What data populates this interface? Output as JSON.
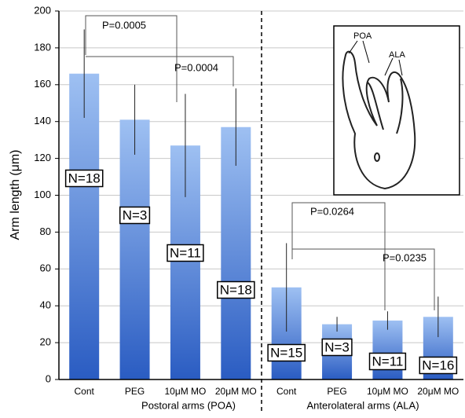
{
  "chart_data": {
    "type": "bar",
    "y_label": "Arm length (μm)",
    "categories": [
      "Cont",
      "PEG",
      "10μM MO",
      "20μM MO",
      "Cont",
      "PEG",
      "10μM MO",
      "20μM MO"
    ],
    "values": [
      166,
      141,
      127,
      137,
      50,
      30,
      32,
      34
    ],
    "errors": [
      24,
      19,
      28,
      21,
      24,
      4,
      5,
      11
    ],
    "n_labels": [
      "N=18",
      "N=3",
      "N=11",
      "N=18",
      "N=15",
      "N=3",
      "N=11",
      "N=16"
    ],
    "groups": [
      "Postoral arms (POA)",
      "Anterolateral arms (ALA)"
    ],
    "annotations": [
      "P=0.0005",
      "P=0.0004",
      "P=0.0264",
      "P=0.0235"
    ],
    "inset_labels": [
      "POA",
      "ALA"
    ],
    "color": "#2f63c8",
    "ylim": [
      0,
      200
    ],
    "yticks": [
      0,
      20,
      40,
      60,
      80,
      100,
      120,
      140,
      160,
      180,
      200
    ],
    "grid": true
  }
}
